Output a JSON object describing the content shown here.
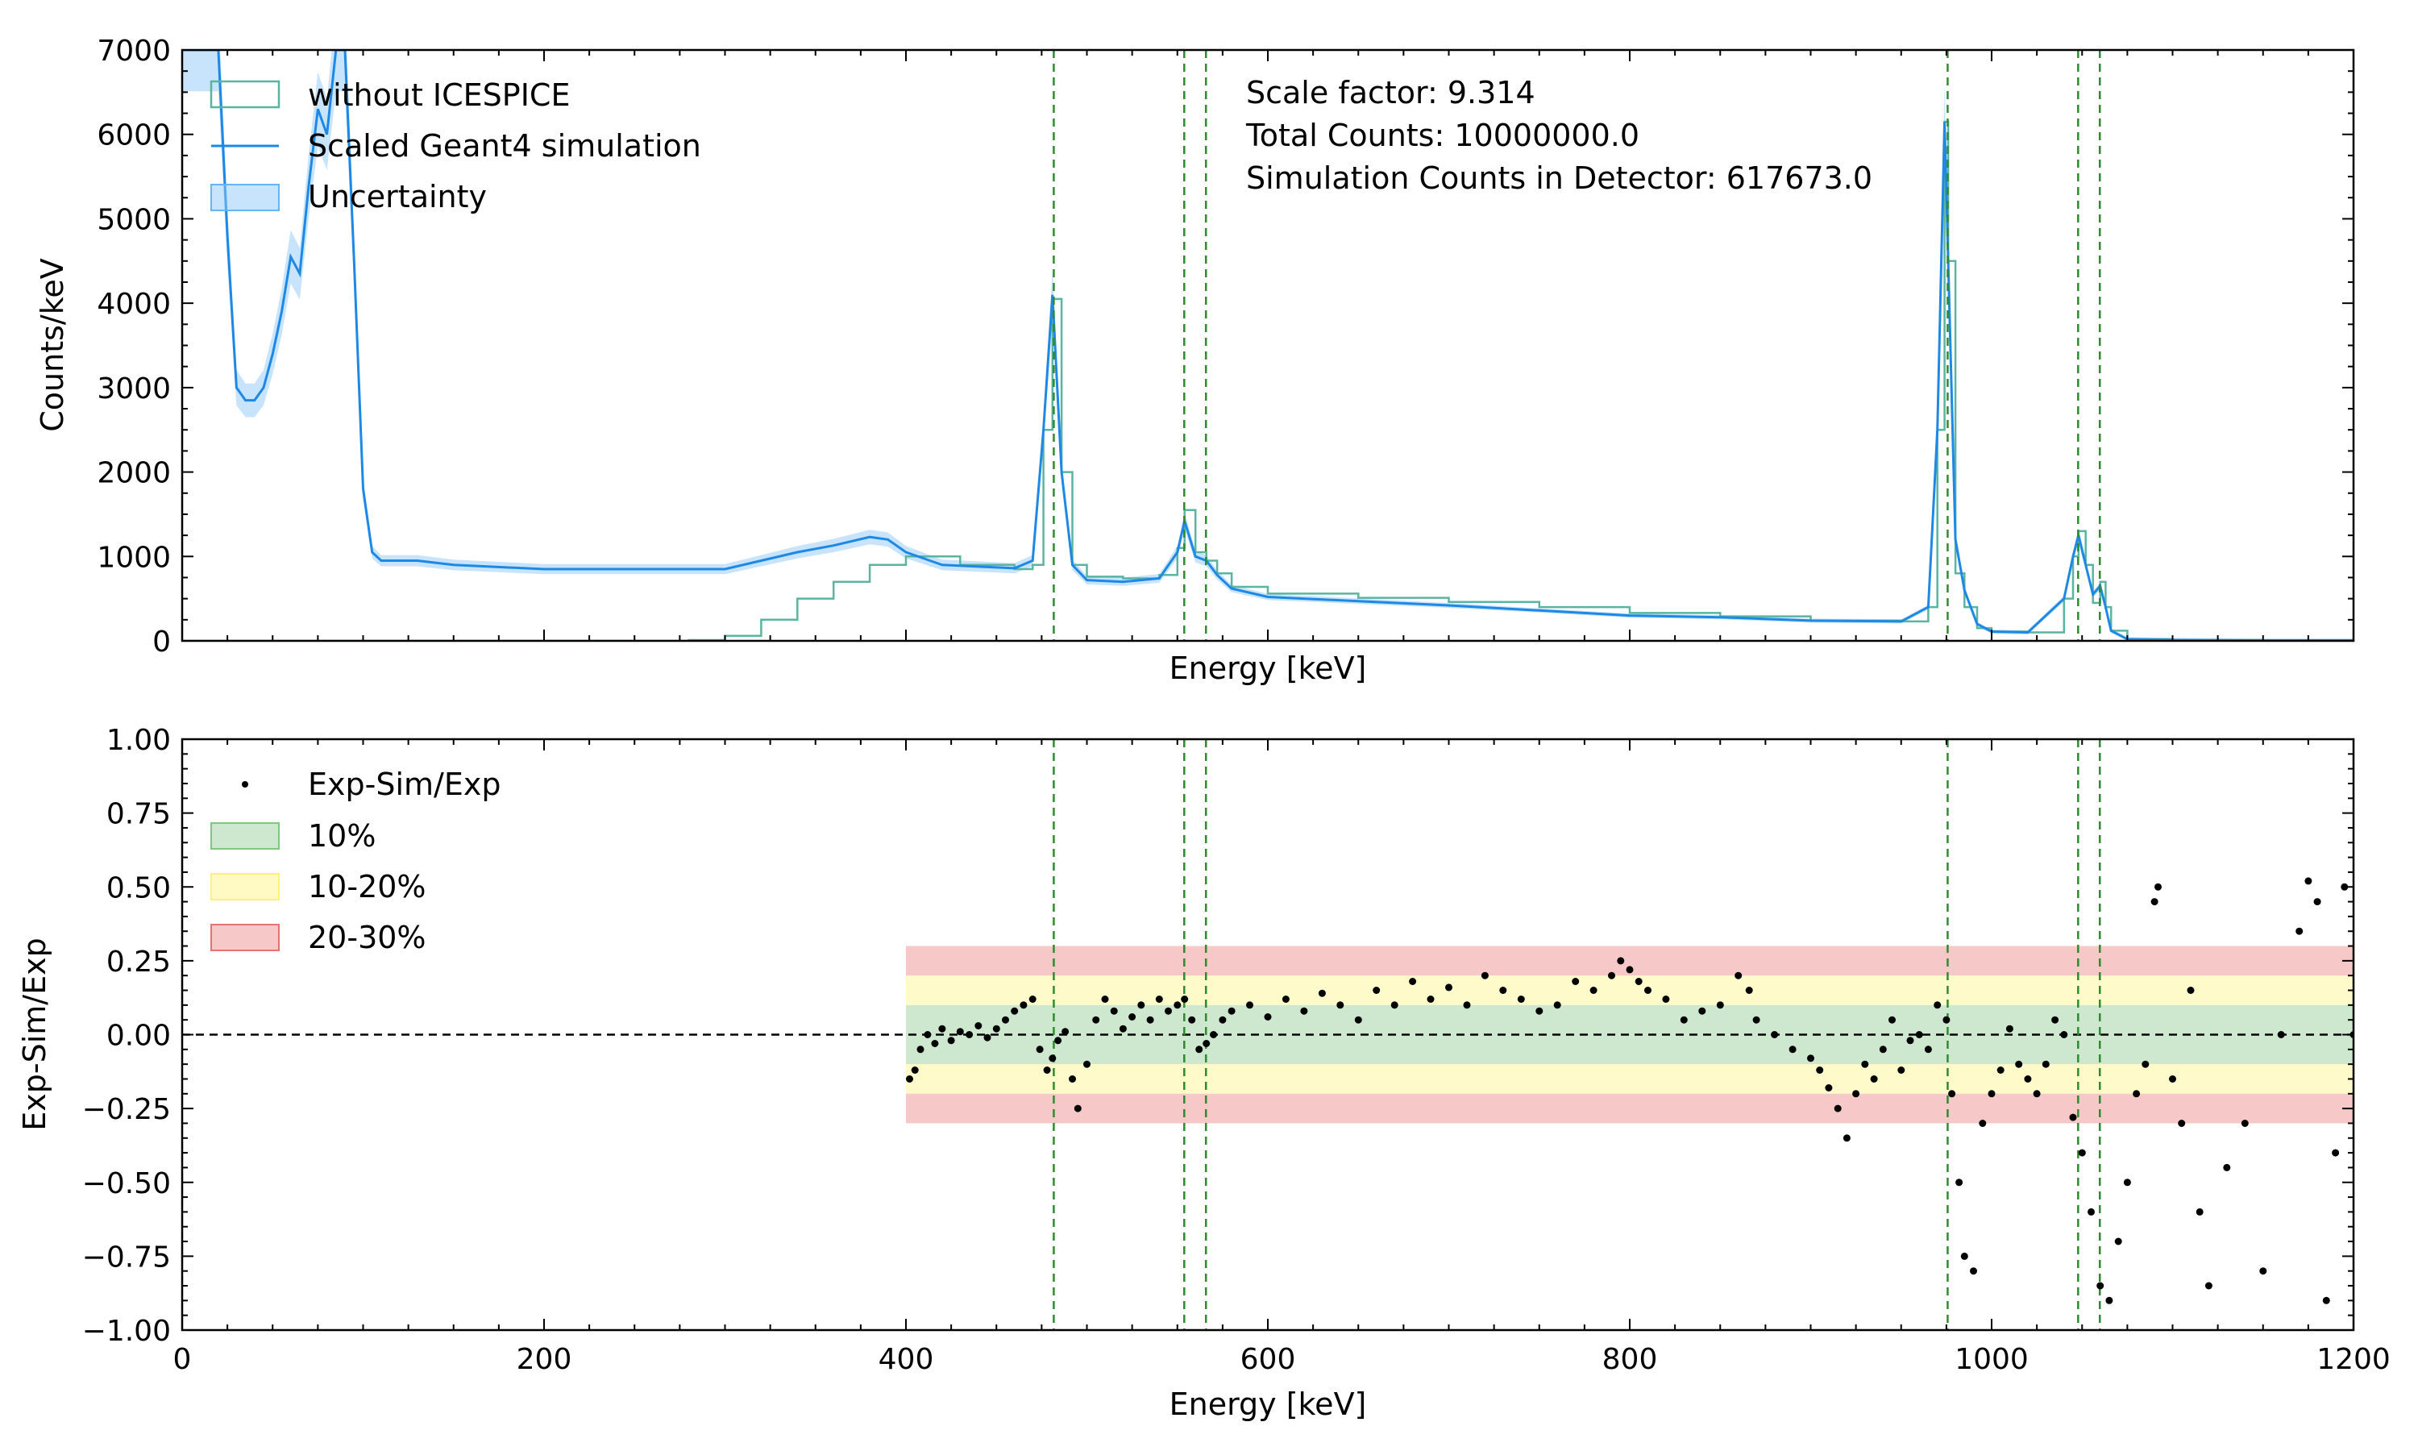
{
  "chart_data": [
    {
      "type": "line",
      "xlabel": "Energy [keV]",
      "ylabel": "Counts/keV",
      "xlim": [
        0,
        1200
      ],
      "ylim": [
        0,
        7000
      ],
      "yticks": [
        0,
        1000,
        2000,
        3000,
        4000,
        5000,
        6000,
        7000
      ],
      "ytick_labels": [
        "0",
        "1000",
        "2000",
        "3000",
        "4000",
        "5000",
        "6000",
        "7000"
      ],
      "legend": {
        "placement": "top-left",
        "entries": [
          "without ICESPICE",
          "Scaled Geant4 simulation",
          "Uncertainty"
        ]
      },
      "annotations": [
        "Scale factor: 9.314",
        "Total Counts: 10000000.0",
        "Simulation Counts in Detector: 617673.0"
      ],
      "vlines_x": [
        481.7,
        553.8,
        565.8,
        975.7,
        1047.8,
        1059.8
      ],
      "colors": {
        "experiment": "#5ab4a0",
        "simulation": "#1e88e5",
        "uncertainty": "#90caf9",
        "vlines": "#2e8b2e"
      },
      "series": [
        {
          "name": "without ICESPICE",
          "style": "step",
          "x": [
            0,
            250,
            280,
            300,
            320,
            340,
            360,
            380,
            400,
            430,
            460,
            470,
            476,
            481,
            486,
            492,
            500,
            520,
            540,
            550,
            554,
            560,
            566,
            572,
            580,
            600,
            650,
            700,
            750,
            800,
            850,
            900,
            950,
            965,
            970,
            974,
            976,
            980,
            985,
            992,
            1000,
            1020,
            1040,
            1045,
            1048,
            1052,
            1056,
            1060,
            1063,
            1066,
            1075,
            1100,
            1150,
            1200
          ],
          "y": [
            0,
            0,
            10,
            60,
            250,
            500,
            700,
            900,
            1000,
            900,
            850,
            900,
            2500,
            4050,
            2000,
            900,
            760,
            740,
            780,
            1100,
            1550,
            1050,
            950,
            800,
            640,
            560,
            510,
            460,
            400,
            330,
            290,
            240,
            230,
            400,
            2500,
            6150,
            4500,
            800,
            400,
            150,
            110,
            100,
            500,
            1000,
            1300,
            900,
            450,
            700,
            400,
            120,
            20,
            10,
            5,
            5
          ]
        },
        {
          "name": "Scaled Geant4 simulation",
          "style": "line",
          "x": [
            0,
            20,
            25,
            30,
            35,
            40,
            45,
            50,
            55,
            60,
            65,
            70,
            75,
            80,
            85,
            90,
            95,
            100,
            105,
            110,
            130,
            150,
            200,
            250,
            300,
            320,
            340,
            360,
            380,
            390,
            400,
            420,
            440,
            460,
            470,
            476,
            481,
            486,
            492,
            500,
            520,
            540,
            550,
            554,
            560,
            566,
            572,
            580,
            600,
            650,
            700,
            750,
            800,
            850,
            900,
            950,
            965,
            970,
            974,
            976,
            980,
            985,
            992,
            1000,
            1020,
            1040,
            1045,
            1048,
            1052,
            1056,
            1060,
            1063,
            1066,
            1075,
            1100,
            1150,
            1200
          ],
          "y": [
            7000,
            7000,
            4800,
            3000,
            2850,
            2850,
            3000,
            3400,
            3900,
            4550,
            4350,
            5400,
            6300,
            6000,
            7000,
            7000,
            4500,
            1800,
            1050,
            950,
            950,
            900,
            850,
            850,
            850,
            950,
            1050,
            1130,
            1230,
            1200,
            1050,
            900,
            880,
            860,
            950,
            2500,
            4100,
            2000,
            900,
            720,
            700,
            740,
            1050,
            1420,
            1000,
            950,
            780,
            620,
            520,
            470,
            420,
            360,
            300,
            280,
            240,
            230,
            400,
            2500,
            6150,
            4500,
            1200,
            600,
            200,
            110,
            100,
            500,
            1000,
            1250,
            900,
            550,
            650,
            400,
            120,
            20,
            10,
            5,
            5
          ]
        }
      ]
    },
    {
      "type": "scatter",
      "xlabel": "Energy [keV]",
      "ylabel": "Exp-Sim/Exp",
      "xlim": [
        0,
        1200
      ],
      "ylim": [
        -1.0,
        1.0
      ],
      "xticks": [
        0,
        200,
        400,
        600,
        800,
        1000,
        1200
      ],
      "xtick_labels": [
        "0",
        "200",
        "400",
        "600",
        "800",
        "1000",
        "1200"
      ],
      "yticks": [
        -1.0,
        -0.75,
        -0.5,
        -0.25,
        0.0,
        0.25,
        0.5,
        0.75,
        1.0
      ],
      "ytick_labels": [
        "−1.00",
        "−0.75",
        "−0.50",
        "−0.25",
        "0.00",
        "0.25",
        "0.50",
        "0.75",
        "1.00"
      ],
      "legend": {
        "placement": "top-left",
        "entries": [
          "Exp-Sim/Exp",
          "10%",
          "10-20%",
          "20-30%"
        ]
      },
      "bands": [
        {
          "name": "10%",
          "y_range": [
            -0.1,
            0.1
          ],
          "x_range": [
            400,
            1200
          ],
          "color": "#a5d6a7"
        },
        {
          "name": "10-20%",
          "y_range": [
            0.1,
            0.2
          ],
          "x_range": [
            400,
            1200
          ],
          "color": "#fff59d"
        },
        {
          "name": "10-20%",
          "y_range": [
            -0.2,
            -0.1
          ],
          "x_range": [
            400,
            1200
          ],
          "color": "#fff59d"
        },
        {
          "name": "20-30%",
          "y_range": [
            0.2,
            0.3
          ],
          "x_range": [
            400,
            1200
          ],
          "color": "#ef9a9a"
        },
        {
          "name": "20-30%",
          "y_range": [
            -0.3,
            -0.2
          ],
          "x_range": [
            400,
            1200
          ],
          "color": "#ef9a9a"
        }
      ],
      "hline_y": 0.0,
      "vlines_x": [
        481.7,
        553.8,
        565.8,
        975.7,
        1047.8,
        1059.8
      ],
      "series": [
        {
          "name": "Exp-Sim/Exp",
          "x": [
            402,
            405,
            408,
            412,
            416,
            420,
            425,
            430,
            435,
            440,
            445,
            450,
            455,
            460,
            465,
            470,
            474,
            478,
            481,
            484,
            488,
            492,
            495,
            500,
            505,
            510,
            515,
            520,
            525,
            530,
            535,
            540,
            545,
            550,
            554,
            558,
            562,
            566,
            570,
            575,
            580,
            590,
            600,
            610,
            620,
            630,
            640,
            650,
            660,
            670,
            680,
            690,
            700,
            710,
            720,
            730,
            740,
            750,
            760,
            770,
            780,
            790,
            795,
            800,
            805,
            810,
            820,
            830,
            840,
            850,
            860,
            866,
            870,
            880,
            890,
            900,
            905,
            910,
            915,
            920,
            925,
            930,
            935,
            940,
            945,
            950,
            955,
            960,
            965,
            970,
            975,
            978,
            982,
            985,
            990,
            995,
            1000,
            1005,
            1010,
            1015,
            1020,
            1025,
            1030,
            1035,
            1040,
            1045,
            1050,
            1055,
            1060,
            1065,
            1070,
            1075,
            1080,
            1085,
            1090,
            1092,
            1100,
            1105,
            1110,
            1115,
            1120,
            1130,
            1140,
            1150,
            1160,
            1170,
            1175,
            1180,
            1185,
            1190,
            1195,
            1200
          ],
          "y": [
            -0.15,
            -0.12,
            -0.05,
            0.0,
            -0.03,
            0.02,
            -0.02,
            0.01,
            0.0,
            0.03,
            -0.01,
            0.02,
            0.05,
            0.08,
            0.1,
            0.12,
            -0.05,
            -0.12,
            -0.08,
            -0.02,
            0.01,
            -0.15,
            -0.25,
            -0.1,
            0.05,
            0.12,
            0.08,
            0.02,
            0.06,
            0.1,
            0.05,
            0.12,
            0.08,
            0.1,
            0.12,
            0.05,
            -0.05,
            -0.03,
            0.0,
            0.05,
            0.08,
            0.1,
            0.06,
            0.12,
            0.08,
            0.14,
            0.1,
            0.05,
            0.15,
            0.1,
            0.18,
            0.12,
            0.16,
            0.1,
            0.2,
            0.15,
            0.12,
            0.08,
            0.1,
            0.18,
            0.15,
            0.2,
            0.25,
            0.22,
            0.18,
            0.15,
            0.12,
            0.05,
            0.08,
            0.1,
            0.2,
            0.15,
            0.05,
            0.0,
            -0.05,
            -0.08,
            -0.12,
            -0.18,
            -0.25,
            -0.35,
            -0.2,
            -0.1,
            -0.15,
            -0.05,
            0.05,
            -0.12,
            -0.02,
            0.0,
            -0.05,
            0.1,
            0.05,
            -0.2,
            -0.5,
            -0.75,
            -0.8,
            -0.3,
            -0.2,
            -0.12,
            0.02,
            -0.1,
            -0.15,
            -0.2,
            -0.1,
            0.05,
            0.0,
            -0.28,
            -0.4,
            -0.6,
            -0.85,
            -0.9,
            -0.7,
            -0.5,
            -0.2,
            -0.1,
            0.45,
            0.5,
            -0.15,
            -0.3,
            0.15,
            -0.6,
            -0.85,
            -0.45,
            -0.3,
            -0.8,
            0.0,
            0.35,
            0.52,
            0.45,
            -0.9,
            -0.4,
            0.5,
            0.0
          ]
        }
      ]
    }
  ]
}
